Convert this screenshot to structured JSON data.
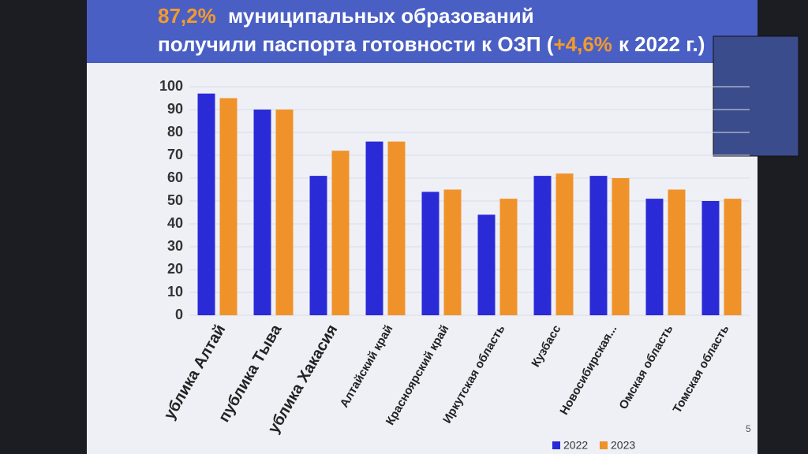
{
  "chart_data": {
    "type": "bar",
    "title": [
      "87,2%",
      "муниципальных образований",
      "получили паспорта готовности к ОЗП (",
      "+4,6%",
      "к 2022 г.)"
    ],
    "categories": [
      "ублика Алтай",
      "публика Тыва",
      "ублика Хакасия",
      "Алтайский край",
      "Красноярский край",
      "Иркутская область",
      "Кузбасс",
      "Новосибирская...",
      "Омская область",
      "Томская область"
    ],
    "series": [
      {
        "name": "2022",
        "color": "#2a2bd6",
        "values": [
          97,
          90,
          61,
          76,
          54,
          44,
          61,
          61,
          51,
          50
        ]
      },
      {
        "name": "2023",
        "color": "#f0922a",
        "values": [
          95,
          90,
          72,
          76,
          55,
          51,
          62,
          60,
          55,
          51
        ]
      }
    ],
    "ylim": [
      0,
      100
    ],
    "yticks": [
      0,
      10,
      20,
      30,
      40,
      50,
      60,
      70,
      80,
      90,
      100
    ],
    "grid": true,
    "legend": "bottom",
    "slide_number": "5"
  }
}
